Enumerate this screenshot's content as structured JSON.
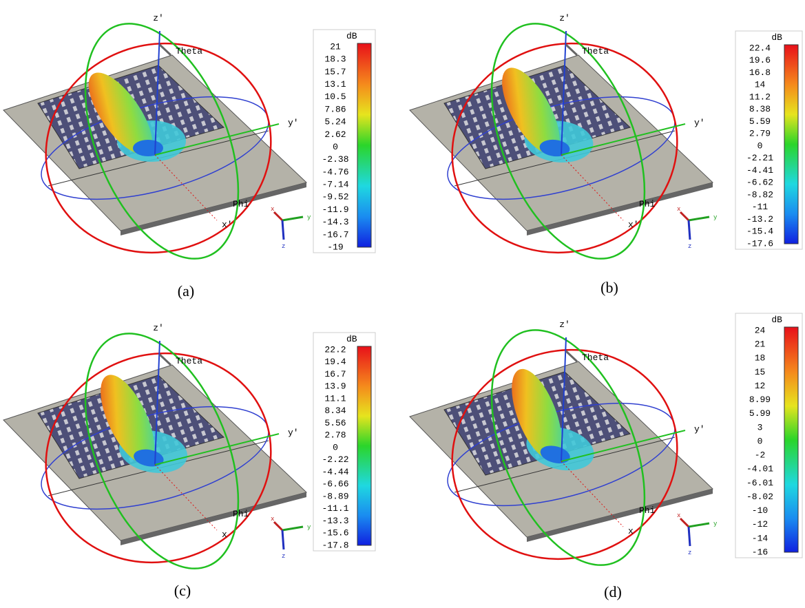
{
  "panels": [
    {
      "caption": "(a)",
      "colorbar": {
        "unit": "dB",
        "ticks": [
          "21",
          "18.3",
          "15.7",
          "13.1",
          "10.5",
          "7.86",
          "5.24",
          "2.62",
          "0",
          "-2.38",
          "-4.76",
          "-7.14",
          "-9.52",
          "-11.9",
          "-14.3",
          "-16.7",
          "-19"
        ]
      },
      "axes": {
        "z": "z'",
        "theta": "Theta",
        "y": "y'",
        "x": "x'",
        "phi": "Phi"
      },
      "triad": {
        "x": "x",
        "y": "y",
        "z": "z"
      }
    },
    {
      "caption": "(b)",
      "colorbar": {
        "unit": "dB",
        "ticks": [
          "22.4",
          "19.6",
          "16.8",
          "14",
          "11.2",
          "8.38",
          "5.59",
          "2.79",
          "0",
          "-2.21",
          "-4.41",
          "-6.62",
          "-8.82",
          "-11",
          "-13.2",
          "-15.4",
          "-17.6"
        ]
      },
      "axes": {
        "z": "z'",
        "theta": "Theta",
        "y": "y'",
        "x": "x'",
        "phi": "Phi"
      },
      "triad": {
        "x": "x",
        "y": "y",
        "z": "z"
      }
    },
    {
      "caption": "(c)",
      "colorbar": {
        "unit": "dB",
        "ticks": [
          "22.2",
          "19.4",
          "16.7",
          "13.9",
          "11.1",
          "8.34",
          "5.56",
          "2.78",
          "0",
          "-2.22",
          "-4.44",
          "-6.66",
          "-8.89",
          "-11.1",
          "-13.3",
          "-15.6",
          "-17.8"
        ]
      },
      "axes": {
        "z": "z'",
        "theta": "Theta",
        "y": "y'",
        "x": "x",
        "phi": "Phi"
      },
      "triad": {
        "x": "x",
        "y": "y",
        "z": "z"
      }
    },
    {
      "caption": "(d)",
      "colorbar": {
        "unit": "dB",
        "ticks": [
          "24",
          "21",
          "18",
          "15",
          "12",
          "8.99",
          "5.99",
          "3",
          "0",
          "-2",
          "-4.01",
          "-6.01",
          "-8.02",
          "-10",
          "-12",
          "-14",
          "-16"
        ]
      },
      "axes": {
        "z": "z'",
        "theta": "Theta",
        "y": "y'",
        "x": "x",
        "phi": "Phi"
      },
      "triad": {
        "x": "x",
        "y": "y",
        "z": "z"
      }
    }
  ]
}
